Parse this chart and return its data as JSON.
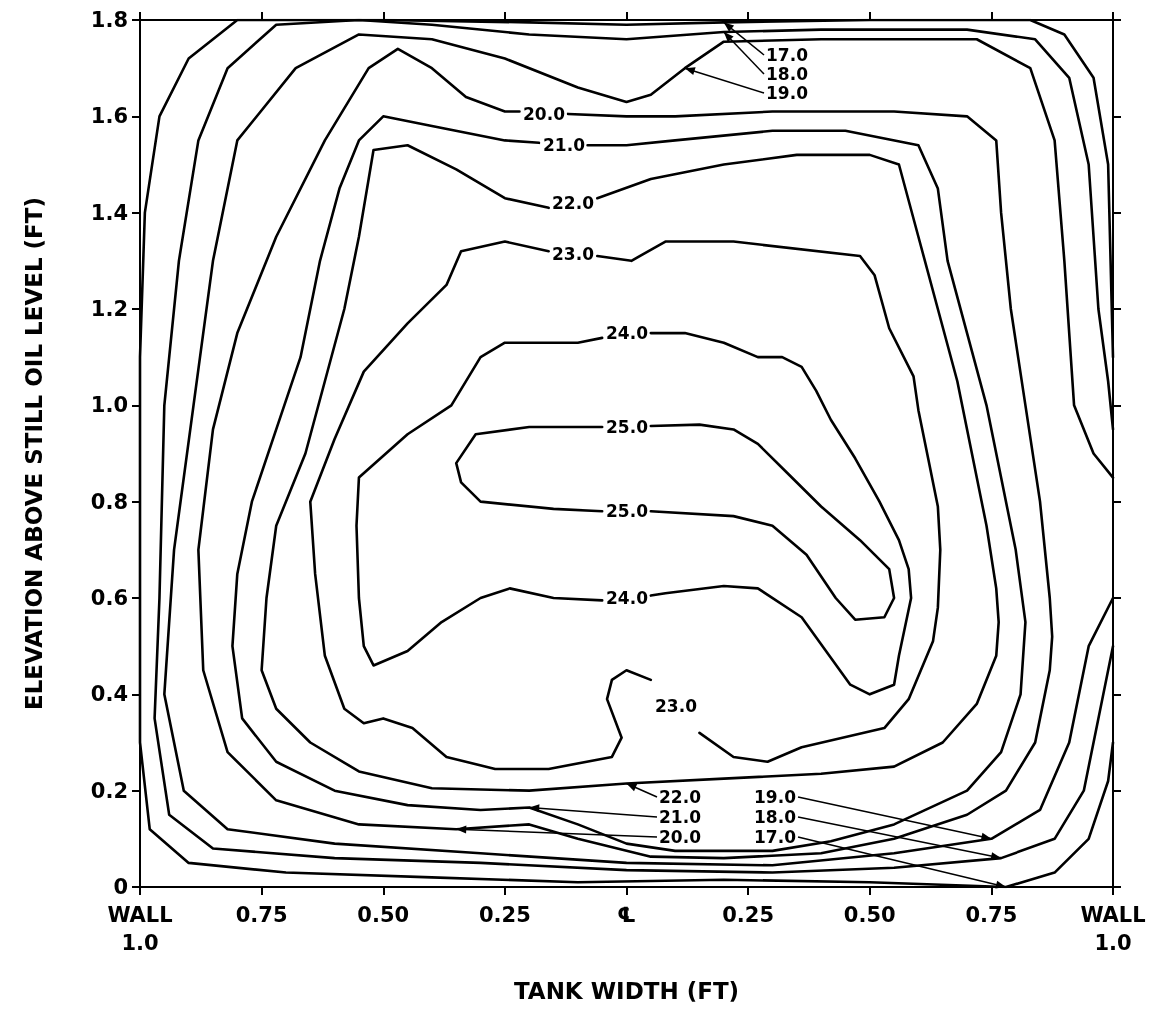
{
  "chart_data": {
    "type": "line",
    "xlabel": "TANK WIDTH (FT)",
    "ylabel": "ELEVATION ABOVE STILL OIL LEVEL (FT)",
    "xlim": [
      -1,
      1
    ],
    "xticks": [
      {
        "value": -1,
        "label": "WALL\n1.0"
      },
      {
        "value": -0.75,
        "label": "0.75"
      },
      {
        "value": -0.5,
        "label": "0.50"
      },
      {
        "value": -0.25,
        "label": "0.25"
      },
      {
        "value": 0,
        "label": "℄"
      },
      {
        "value": 0.25,
        "label": "0.25"
      },
      {
        "value": 0.5,
        "label": "0.50"
      },
      {
        "value": 0.75,
        "label": "0.75"
      },
      {
        "value": 1,
        "label": "WALL\n1.0"
      }
    ],
    "ylim": [
      0,
      1.8
    ],
    "yticks": [
      0,
      0.2,
      0.4,
      0.6,
      0.8,
      {
        "value": 1,
        "label": "1.0"
      },
      1.2,
      1.4,
      1.6,
      1.8
    ],
    "series": [
      {
        "color": "#000000",
        "x": [
          -0.05,
          -0.2,
          -0.31,
          -0.35,
          -0.34,
          -0.3,
          -0.15,
          -0.05
        ],
        "values": [
          0.955,
          0.955,
          0.94,
          0.88,
          0.84,
          0.8,
          0.785,
          0.78
        ]
      },
      {
        "color": "#000000",
        "x": [
          0.05,
          0.15,
          0.22,
          0.27,
          0.33,
          0.4,
          0.48,
          0.54,
          0.55,
          0.53,
          0.47,
          0.43,
          0.37,
          0.3,
          0.22,
          0.05
        ],
        "values": [
          0.957,
          0.96,
          0.95,
          0.92,
          0.86,
          0.79,
          0.72,
          0.66,
          0.6,
          0.56,
          0.555,
          0.6,
          0.69,
          0.75,
          0.77,
          0.78
        ]
      },
      {
        "color": "#000000",
        "x": [
          -0.05,
          -0.1,
          -0.25,
          -0.3,
          -0.36,
          -0.45,
          -0.55,
          -0.555,
          -0.55,
          -0.54,
          -0.52,
          -0.45,
          -0.38,
          -0.3,
          -0.24,
          -0.15,
          -0.05
        ],
        "values": [
          1.14,
          1.13,
          1.13,
          1.1,
          1.0,
          0.94,
          0.85,
          0.75,
          0.6,
          0.5,
          0.46,
          0.49,
          0.55,
          0.6,
          0.62,
          0.6,
          0.595
        ]
      },
      {
        "color": "#000000",
        "x": [
          0.05,
          0.12,
          0.2,
          0.27,
          0.32,
          0.36,
          0.39,
          0.42,
          0.47,
          0.52,
          0.56,
          0.58,
          0.585,
          0.56,
          0.55,
          0.5,
          0.46,
          0.41,
          0.36,
          0.27,
          0.2,
          0.08,
          0.05
        ],
        "values": [
          1.15,
          1.15,
          1.13,
          1.1,
          1.1,
          1.08,
          1.03,
          0.97,
          0.89,
          0.8,
          0.72,
          0.66,
          0.6,
          0.48,
          0.42,
          0.4,
          0.42,
          0.49,
          0.56,
          0.62,
          0.625,
          0.61,
          0.605
        ]
      },
      {
        "color": "#000000",
        "x": [
          -0.16,
          -0.25,
          -0.34,
          -0.37,
          -0.45,
          -0.54,
          -0.6,
          -0.65,
          -0.64,
          -0.62,
          -0.58,
          -0.54,
          -0.5,
          -0.44,
          -0.37,
          -0.27,
          -0.16,
          -0.03,
          -0.01,
          -0.04,
          -0.03,
          0,
          0.05
        ],
        "values": [
          1.32,
          1.34,
          1.32,
          1.25,
          1.17,
          1.07,
          0.93,
          0.8,
          0.65,
          0.48,
          0.37,
          0.34,
          0.35,
          0.33,
          0.27,
          0.245,
          0.245,
          0.27,
          0.31,
          0.39,
          0.43,
          0.45,
          0.43
        ]
      },
      {
        "color": "#000000",
        "x": [
          0.15,
          0.22,
          0.29,
          0.36,
          0.53,
          0.58,
          0.63,
          0.64,
          0.645,
          0.64,
          0.62,
          0.6,
          0.59,
          0.54,
          0.51,
          0.48,
          0.22,
          0.08,
          0.01,
          -0.06
        ],
        "values": [
          0.32,
          0.27,
          0.26,
          0.29,
          0.33,
          0.39,
          0.51,
          0.58,
          0.7,
          0.79,
          0.89,
          0.99,
          1.06,
          1.16,
          1.27,
          1.31,
          1.34,
          1.34,
          1.3,
          1.31
        ]
      },
      {
        "color": "#000000",
        "x": [
          -0.16,
          -0.25,
          -0.35,
          -0.45,
          -0.52,
          -0.53,
          -0.55,
          -0.58,
          -0.62,
          -0.66,
          -0.72,
          -0.74,
          -0.75,
          -0.72,
          -0.65,
          -0.55,
          -0.4,
          -0.2,
          0,
          0.2,
          0.4,
          0.55,
          0.65,
          0.72,
          0.76,
          0.765,
          0.76,
          0.74,
          0.71,
          0.68,
          0.64,
          0.6,
          0.56,
          0.5,
          0.35,
          0.2,
          0.05,
          -0.06
        ],
        "values": [
          1.41,
          1.43,
          1.49,
          1.54,
          1.53,
          1.47,
          1.35,
          1.2,
          1.05,
          0.9,
          0.75,
          0.6,
          0.45,
          0.37,
          0.3,
          0.24,
          0.205,
          0.2,
          0.215,
          0.225,
          0.235,
          0.25,
          0.3,
          0.38,
          0.48,
          0.55,
          0.62,
          0.75,
          0.9,
          1.05,
          1.2,
          1.35,
          1.5,
          1.52,
          1.52,
          1.5,
          1.47,
          1.43
        ]
      },
      {
        "color": "#000000",
        "x": [
          -0.18,
          -0.25,
          -0.4,
          -0.5,
          -0.55,
          -0.59,
          -0.63,
          -0.67,
          -0.72,
          -0.77,
          -0.8,
          -0.81,
          -0.79,
          -0.72,
          -0.6,
          -0.45,
          -0.3,
          -0.2,
          -0.1,
          0,
          0.1,
          0.3,
          0.42,
          0.55,
          0.7,
          0.77,
          0.81,
          0.82,
          0.8,
          0.77,
          0.74,
          0.7,
          0.66,
          0.64,
          0.6,
          0.45,
          0.3,
          0.1,
          0,
          -0.08
        ],
        "values": [
          1.545,
          1.55,
          1.58,
          1.6,
          1.55,
          1.45,
          1.3,
          1.1,
          0.95,
          0.8,
          0.65,
          0.5,
          0.35,
          0.26,
          0.2,
          0.17,
          0.16,
          0.165,
          0.13,
          0.09,
          0.075,
          0.075,
          0.095,
          0.13,
          0.2,
          0.28,
          0.4,
          0.55,
          0.7,
          0.85,
          1.0,
          1.15,
          1.3,
          1.45,
          1.54,
          1.57,
          1.57,
          1.55,
          1.54,
          1.54
        ]
      },
      {
        "color": "#000000",
        "x": [
          -0.22,
          -0.25,
          -0.33,
          -0.4,
          -0.47,
          -0.53,
          -0.62,
          -0.72,
          -0.8,
          -0.85,
          -0.88,
          -0.87,
          -0.82,
          -0.72,
          -0.55,
          -0.35,
          -0.2,
          -0.1,
          0.05,
          0.2,
          0.4,
          0.55,
          0.7,
          0.78,
          0.84,
          0.87,
          0.875,
          0.87,
          0.85,
          0.82,
          0.79,
          0.77,
          0.76,
          0.7,
          0.55,
          0.3,
          0.1,
          0,
          -0.12
        ],
        "values": [
          1.61,
          1.61,
          1.64,
          1.7,
          1.74,
          1.7,
          1.55,
          1.35,
          1.15,
          0.95,
          0.7,
          0.45,
          0.28,
          0.18,
          0.13,
          0.12,
          0.13,
          0.1,
          0.063,
          0.06,
          0.07,
          0.1,
          0.15,
          0.2,
          0.3,
          0.45,
          0.52,
          0.6,
          0.8,
          1.0,
          1.2,
          1.4,
          1.55,
          1.6,
          1.61,
          1.61,
          1.6,
          1.6,
          1.605
        ]
      },
      {
        "color": "#000000",
        "x": [
          1,
          0.95,
          0.91,
          0.85,
          0.75,
          0.55,
          0.3,
          0,
          -0.3,
          -0.6,
          -0.82,
          -0.91,
          -0.95,
          -0.93,
          -0.89,
          -0.85,
          -0.8,
          -0.68,
          -0.55,
          -0.4,
          -0.25,
          -0.1,
          0,
          0.05,
          0.12,
          0.2,
          0.4,
          0.72,
          0.83,
          0.88,
          0.9,
          0.92,
          0.96,
          1
        ],
        "values": [
          0.6,
          0.5,
          0.3,
          0.16,
          0.1,
          0.07,
          0.045,
          0.05,
          0.07,
          0.09,
          0.12,
          0.2,
          0.4,
          0.7,
          1.0,
          1.3,
          1.55,
          1.7,
          1.77,
          1.76,
          1.72,
          1.66,
          1.63,
          1.645,
          1.7,
          1.755,
          1.76,
          1.76,
          1.7,
          1.55,
          1.3,
          1.0,
          0.9,
          0.85
        ]
      },
      {
        "color": "#000000",
        "x": [
          1,
          0.97,
          0.94,
          0.88,
          0.77,
          0.55,
          0.3,
          0,
          -0.3,
          -0.6,
          -0.85,
          -0.94,
          -0.97,
          -0.96,
          -0.95,
          -0.92,
          -0.88,
          -0.82,
          -0.72,
          -0.55,
          -0.4,
          -0.2,
          0,
          0.2,
          0.4,
          0.7,
          0.84,
          0.91,
          0.95,
          0.97,
          0.99,
          1
        ],
        "values": [
          0.5,
          0.35,
          0.2,
          0.1,
          0.06,
          0.04,
          0.03,
          0.035,
          0.05,
          0.06,
          0.08,
          0.15,
          0.35,
          0.6,
          1.0,
          1.3,
          1.55,
          1.7,
          1.79,
          1.8,
          1.79,
          1.77,
          1.76,
          1.775,
          1.78,
          1.78,
          1.76,
          1.68,
          1.5,
          1.2,
          1.05,
          0.95
        ]
      },
      {
        "color": "#000000",
        "x": [
          1,
          0.99,
          0.95,
          0.88,
          0.78,
          0.5,
          0.2,
          -0.1,
          -0.4,
          -0.7,
          -0.9,
          -0.98,
          -1,
          -1,
          -0.99,
          -0.96,
          -0.9,
          -0.8,
          -0.5,
          -0.2,
          0,
          0.2,
          0.5,
          0.83,
          0.9,
          0.96,
          0.99,
          1
        ],
        "values": [
          0.3,
          0.22,
          0.1,
          0.03,
          0,
          0.01,
          0.015,
          0.01,
          0.02,
          0.03,
          0.05,
          0.12,
          0.3,
          1.1,
          1.4,
          1.6,
          1.72,
          1.8,
          1.8,
          1.795,
          1.79,
          1.795,
          1.8,
          1.8,
          1.77,
          1.68,
          1.5,
          1.1
        ]
      }
    ],
    "annotations": [
      {
        "text": "17.0",
        "x": 0.2,
        "y": 1.795
      },
      {
        "text": "18.0",
        "x": 0.2,
        "y": 1.775
      },
      {
        "text": "19.0",
        "x": 0.12,
        "y": 1.7
      },
      "20.0",
      "21.0",
      "22.0",
      "23.0",
      "24.0",
      "25.0",
      "25.0",
      "24.0",
      "23.0",
      {
        "text": "22.0",
        "x": 0,
        "y": 0.215
      },
      {
        "text": "21.0",
        "x": -0.2,
        "y": 0.165
      },
      {
        "text": "20.0",
        "x": -0.35,
        "y": 0.12
      },
      {
        "text": "19.0",
        "x": 0.75,
        "y": 0.1
      },
      {
        "text": "18.0",
        "x": 0.77,
        "y": 0.06
      },
      {
        "text": "17.0",
        "x": 0.78,
        "y": 0
      }
    ]
  }
}
